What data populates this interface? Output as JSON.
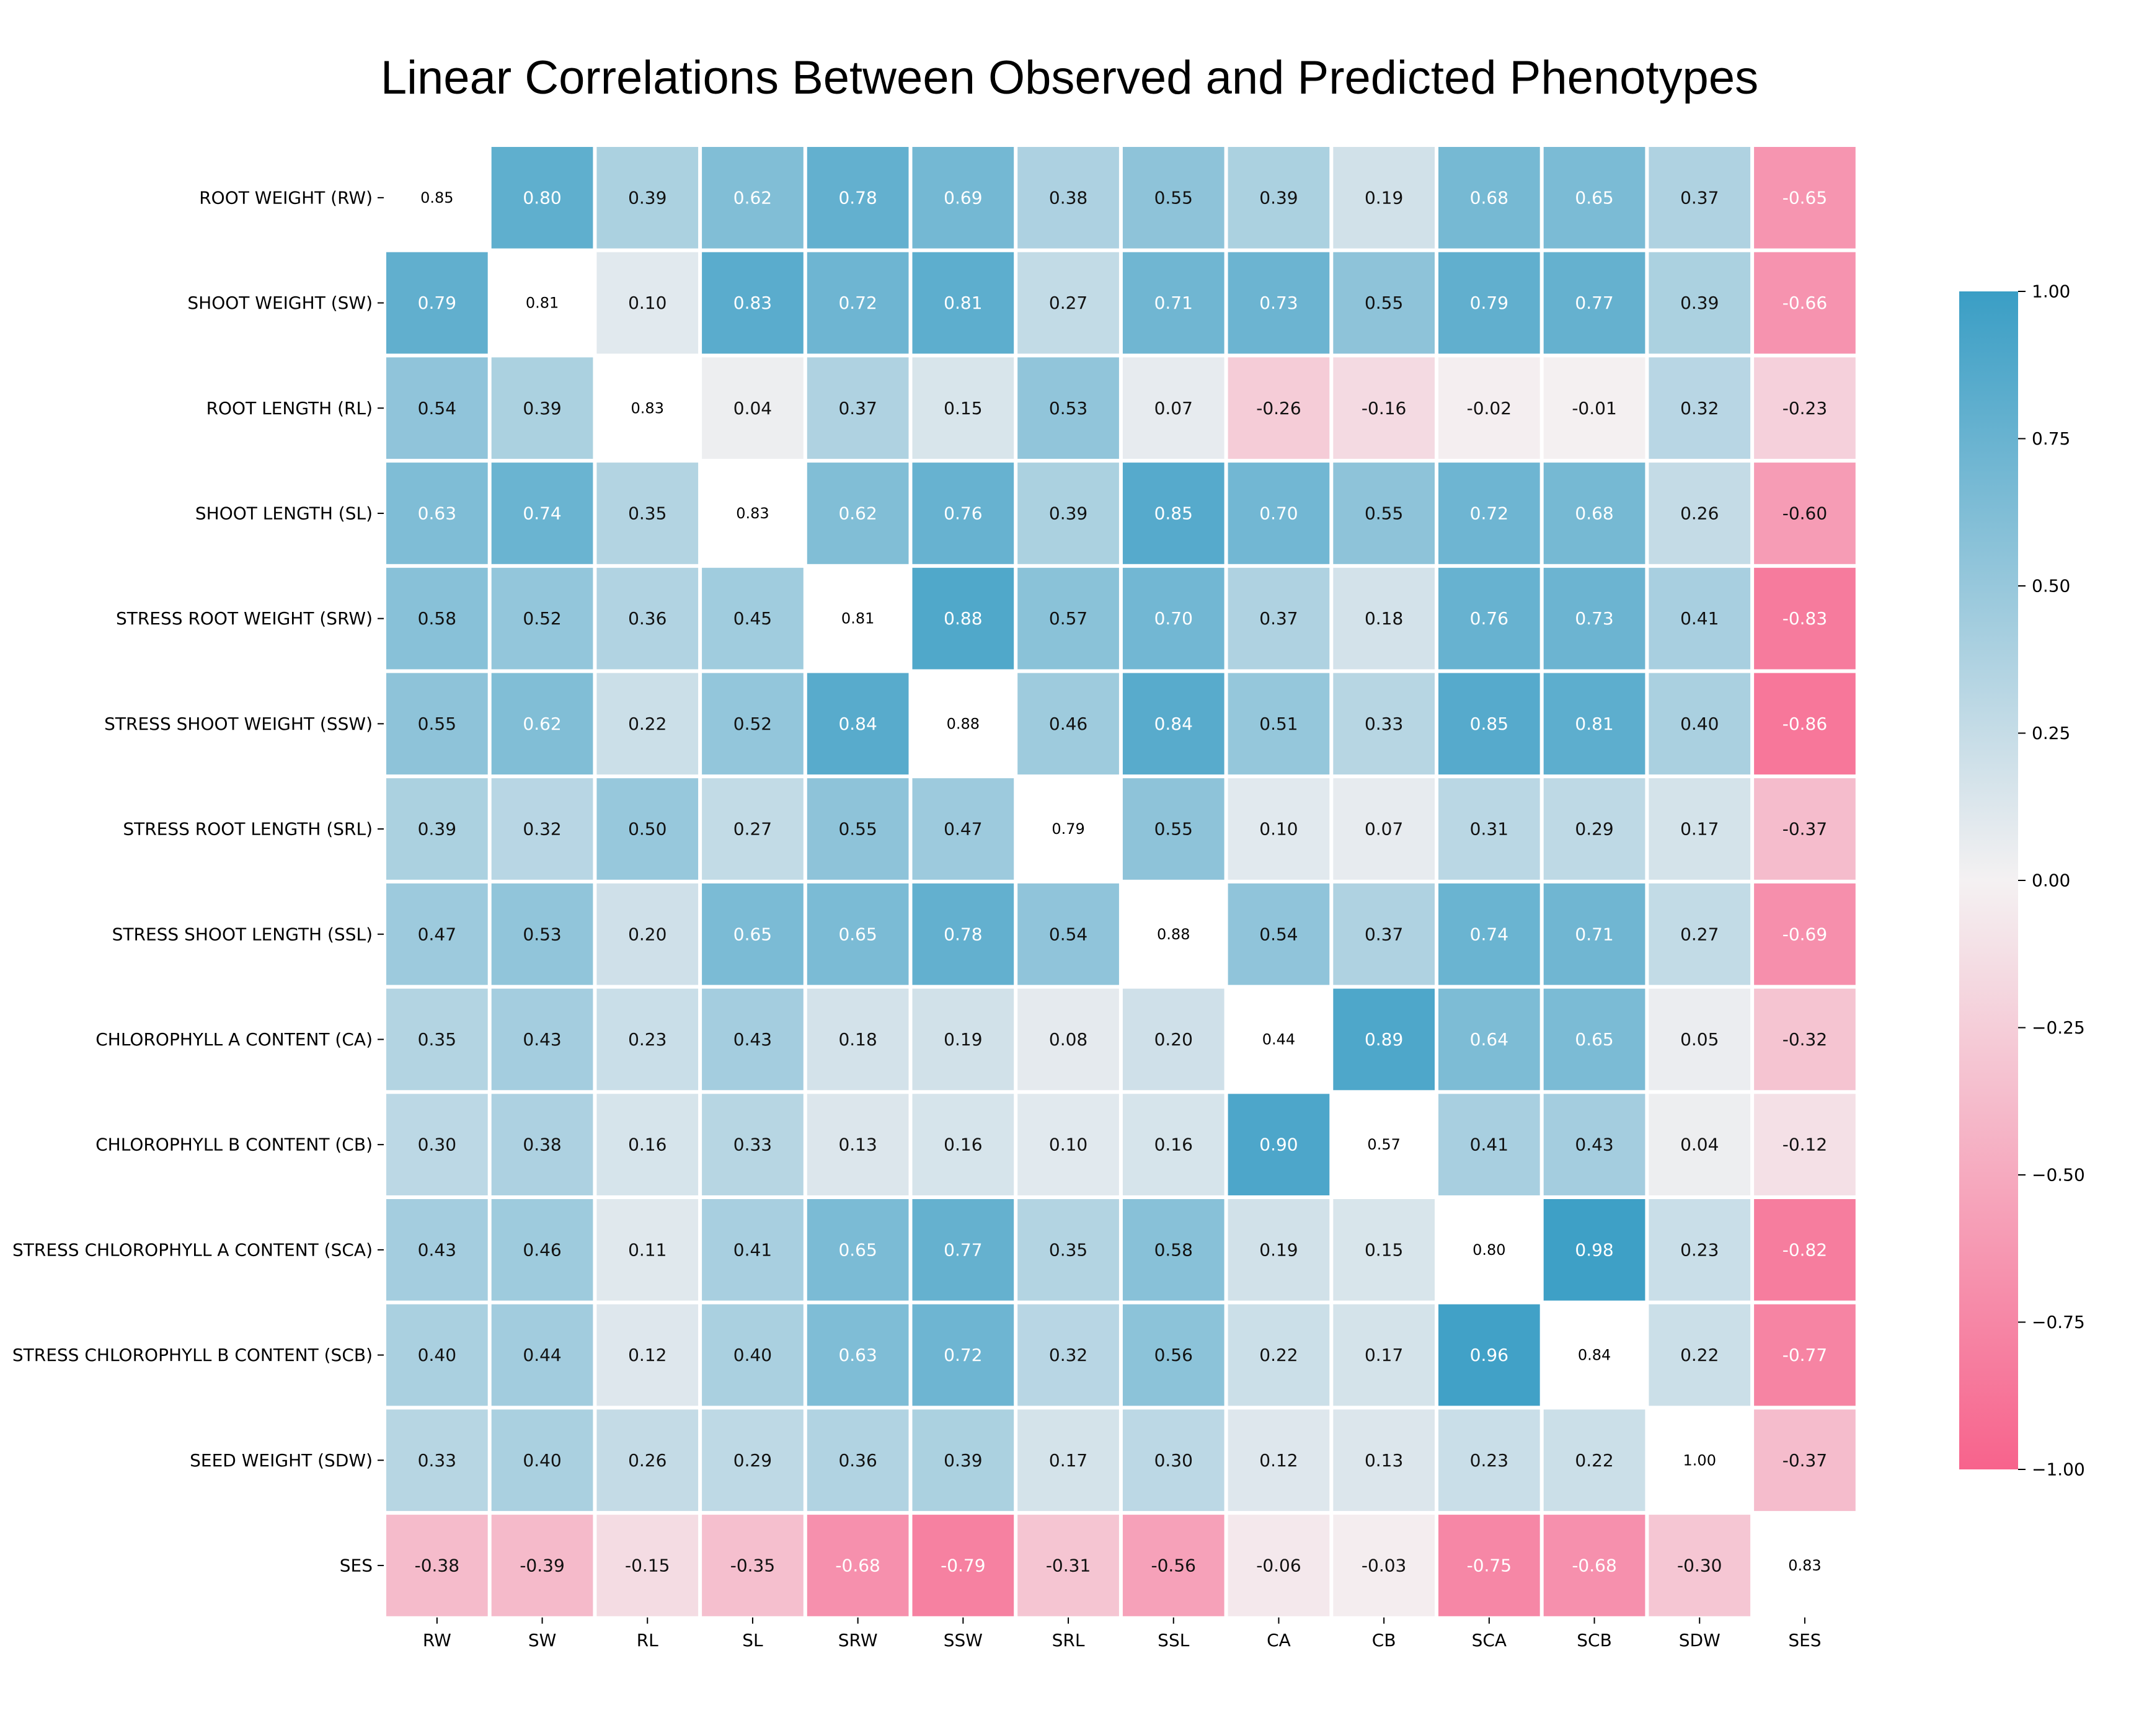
{
  "title": "Linear Correlations Between Observed and Predicted Phenotypes",
  "chart_data": {
    "type": "heatmap",
    "title": "Linear Correlations Between Observed and Predicted Phenotypes",
    "row_labels": [
      "ROOT WEIGHT (RW)",
      "SHOOT WEIGHT (SW)",
      "ROOT LENGTH (RL)",
      "SHOOT LENGTH (SL)",
      "STRESS ROOT WEIGHT (SRW)",
      "STRESS SHOOT WEIGHT (SSW)",
      "STRESS ROOT LENGTH (SRL)",
      "STRESS SHOOT LENGTH (SSL)",
      "CHLOROPHYLL A CONTENT (CA)",
      "CHLOROPHYLL B CONTENT (CB)",
      "STRESS CHLOROPHYLL A CONTENT (SCA)",
      "STRESS CHLOROPHYLL B CONTENT (SCB)",
      "SEED WEIGHT (SDW)",
      "SES"
    ],
    "col_labels": [
      "RW",
      "SW",
      "RL",
      "SL",
      "SRW",
      "SSW",
      "SRL",
      "SSL",
      "CA",
      "CB",
      "SCA",
      "SCB",
      "SDW",
      "SES"
    ],
    "values": [
      [
        "0.85",
        "0.80",
        "0.39",
        "0.62",
        "0.78",
        "0.69",
        "0.38",
        "0.55",
        "0.39",
        "0.19",
        "0.68",
        "0.65",
        "0.37",
        "-0.65"
      ],
      [
        "0.79",
        "0.81",
        "0.10",
        "0.83",
        "0.72",
        "0.81",
        "0.27",
        "0.71",
        "0.73",
        "0.55",
        "0.79",
        "0.77",
        "0.39",
        "-0.66"
      ],
      [
        "0.54",
        "0.39",
        "0.83",
        "0.04",
        "0.37",
        "0.15",
        "0.53",
        "0.07",
        "-0.26",
        "-0.16",
        "-0.02",
        "-0.01",
        "0.32",
        "-0.23"
      ],
      [
        "0.63",
        "0.74",
        "0.35",
        "0.83",
        "0.62",
        "0.76",
        "0.39",
        "0.85",
        "0.70",
        "0.55",
        "0.72",
        "0.68",
        "0.26",
        "-0.60"
      ],
      [
        "0.58",
        "0.52",
        "0.36",
        "0.45",
        "0.81",
        "0.88",
        "0.57",
        "0.70",
        "0.37",
        "0.18",
        "0.76",
        "0.73",
        "0.41",
        "-0.83"
      ],
      [
        "0.55",
        "0.62",
        "0.22",
        "0.52",
        "0.84",
        "0.88",
        "0.46",
        "0.84",
        "0.51",
        "0.33",
        "0.85",
        "0.81",
        "0.40",
        "-0.86"
      ],
      [
        "0.39",
        "0.32",
        "0.50",
        "0.27",
        "0.55",
        "0.47",
        "0.79",
        "0.55",
        "0.10",
        "0.07",
        "0.31",
        "0.29",
        "0.17",
        "-0.37"
      ],
      [
        "0.47",
        "0.53",
        "0.20",
        "0.65",
        "0.65",
        "0.78",
        "0.54",
        "0.88",
        "0.54",
        "0.37",
        "0.74",
        "0.71",
        "0.27",
        "-0.69"
      ],
      [
        "0.35",
        "0.43",
        "0.23",
        "0.43",
        "0.18",
        "0.19",
        "0.08",
        "0.20",
        "0.44",
        "0.89",
        "0.64",
        "0.65",
        "0.05",
        "-0.32"
      ],
      [
        "0.30",
        "0.38",
        "0.16",
        "0.33",
        "0.13",
        "0.16",
        "0.10",
        "0.16",
        "0.90",
        "0.57",
        "0.41",
        "0.43",
        "0.04",
        "-0.12"
      ],
      [
        "0.43",
        "0.46",
        "0.11",
        "0.41",
        "0.65",
        "0.77",
        "0.35",
        "0.58",
        "0.19",
        "0.15",
        "0.80",
        "0.98",
        "0.23",
        "-0.82"
      ],
      [
        "0.40",
        "0.44",
        "0.12",
        "0.40",
        "0.63",
        "0.72",
        "0.32",
        "0.56",
        "0.22",
        "0.17",
        "0.96",
        "0.84",
        "0.22",
        "-0.77"
      ],
      [
        "0.33",
        "0.40",
        "0.26",
        "0.29",
        "0.36",
        "0.39",
        "0.17",
        "0.30",
        "0.12",
        "0.13",
        "0.23",
        "0.22",
        "1.00",
        "-0.37"
      ],
      [
        "-0.38",
        "-0.39",
        "-0.15",
        "-0.35",
        "-0.68",
        "-0.79",
        "-0.31",
        "-0.56",
        "-0.06",
        "-0.03",
        "-0.75",
        "-0.68",
        "-0.30",
        "0.83"
      ]
    ],
    "diagonal_uncolored": true,
    "colorbar": {
      "range": [
        -1.0,
        1.0
      ],
      "ticks": [
        "1.00",
        "0.75",
        "0.50",
        "0.25",
        "0.00",
        "−0.25",
        "−0.50",
        "−0.75",
        "−1.00"
      ],
      "tick_values": [
        1.0,
        0.75,
        0.5,
        0.25,
        0.0,
        -0.25,
        -0.5,
        -0.75,
        -1.0
      ],
      "colors": {
        "positive": "#3a9ec5",
        "zero": "#f4f1f2",
        "negative": "#f7638c"
      }
    },
    "grid": false,
    "cell_separator_color": "#ffffff"
  }
}
